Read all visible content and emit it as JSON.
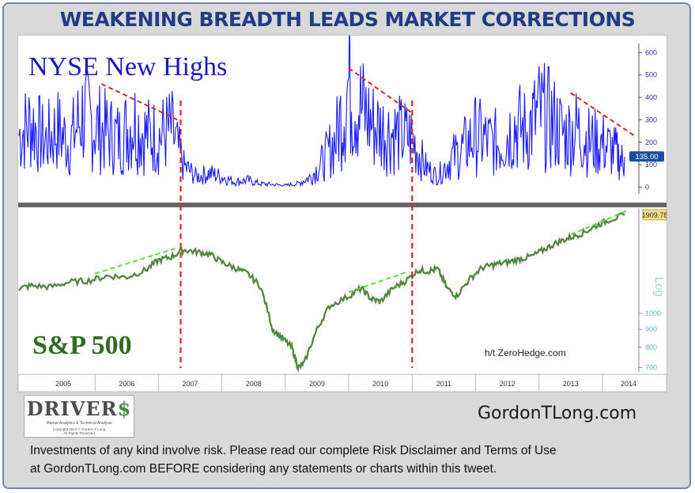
{
  "title": "WEAKENING BREADTH LEADS MARKET CORRECTIONS",
  "site": "GordonTLong.com",
  "disclaimer": {
    "line1": "Investments of any kind involve risk. Please read our complete Risk Disclaimer and Terms of Use",
    "line2": "at GordonTLong.com BEFORE considering any statements or charts within this tweet."
  },
  "brand": {
    "name": "DRIVER",
    "name_symbol": "$",
    "tagline": "Market Analytics & Technical Analysis",
    "copyright_1": "Copyright 2014 © Gordon T Long",
    "copyright_2": "All Rights Reserved"
  },
  "chart_data": [
    {
      "type": "line",
      "title": "NYSE New Highs",
      "y_axis_ticks": [
        "0",
        "100",
        "200",
        "300",
        "400",
        "500",
        "600"
      ],
      "ylim": [
        -30,
        640
      ],
      "last_value_label": "135.00",
      "series": [
        {
          "color": "#1a1aff",
          "x": [
            2004.8,
            2005.0,
            2005.2,
            2005.4,
            2005.6,
            2005.8,
            2006.0,
            2006.2,
            2006.4,
            2006.6,
            2006.8,
            2007.0,
            2007.2,
            2007.4,
            2007.6,
            2007.8,
            2008.0,
            2008.2,
            2008.4,
            2008.6,
            2008.8,
            2009.0,
            2009.2,
            2009.4,
            2009.6,
            2009.8,
            2010.0,
            2010.2,
            2010.4,
            2010.6,
            2010.8,
            2011.0,
            2011.2,
            2011.4,
            2011.6,
            2011.8,
            2012.0,
            2012.2,
            2012.4,
            2012.6,
            2012.8,
            2013.0,
            2013.2,
            2013.4,
            2013.6,
            2013.8,
            2014.0,
            2014.2,
            2014.35
          ],
          "values": [
            300,
            370,
            260,
            330,
            250,
            420,
            350,
            310,
            280,
            380,
            300,
            290,
            330,
            120,
            60,
            80,
            60,
            30,
            40,
            20,
            15,
            10,
            20,
            60,
            150,
            280,
            600,
            450,
            350,
            320,
            300,
            280,
            120,
            60,
            160,
            220,
            300,
            260,
            250,
            360,
            320,
            420,
            380,
            300,
            330,
            260,
            250,
            200,
            135
          ]
        }
      ],
      "trendlines": [
        {
          "color": "#e3231f",
          "x": [
            2006.1,
            2007.3
          ],
          "values": [
            460,
            300
          ]
        },
        {
          "color": "#e3231f",
          "x": [
            2010.0,
            2011.0
          ],
          "values": [
            530,
            330
          ]
        },
        {
          "color": "#e3231f",
          "x": [
            2013.5,
            2014.5
          ],
          "values": [
            420,
            230
          ]
        }
      ]
    },
    {
      "type": "line",
      "title": "S&P 500",
      "scale": "log",
      "y_axis_label": "Log",
      "y_axis_ticks": [
        "700",
        "800",
        "900",
        "1000"
      ],
      "ylim": [
        680,
        2000
      ],
      "last_value_label": "1909.78",
      "x_axis_labels": [
        "2005",
        "2006",
        "2007",
        "2008",
        "2009",
        "2010",
        "2011",
        "2012",
        "2013",
        "2014"
      ],
      "annotation": "h/t ZeroHedge.com",
      "series": [
        {
          "color": "#3a8f3a",
          "x": [
            2004.8,
            2005.0,
            2005.3,
            2005.6,
            2005.9,
            2006.2,
            2006.5,
            2006.8,
            2007.0,
            2007.2,
            2007.4,
            2007.6,
            2007.8,
            2008.0,
            2008.2,
            2008.4,
            2008.6,
            2008.8,
            2008.95,
            2009.1,
            2009.2,
            2009.3,
            2009.5,
            2009.7,
            2010.0,
            2010.2,
            2010.35,
            2010.5,
            2010.7,
            2010.9,
            2011.1,
            2011.25,
            2011.4,
            2011.55,
            2011.7,
            2011.9,
            2012.1,
            2012.3,
            2012.5,
            2012.7,
            2012.9,
            2013.1,
            2013.3,
            2013.5,
            2013.7,
            2013.9,
            2014.1,
            2014.35
          ],
          "values": [
            1180,
            1200,
            1190,
            1230,
            1240,
            1280,
            1270,
            1330,
            1420,
            1450,
            1520,
            1500,
            1480,
            1400,
            1350,
            1300,
            1200,
            900,
            850,
            800,
            700,
            720,
            900,
            1050,
            1120,
            1180,
            1100,
            1080,
            1180,
            1240,
            1330,
            1320,
            1340,
            1180,
            1120,
            1250,
            1350,
            1380,
            1400,
            1430,
            1460,
            1530,
            1600,
            1650,
            1700,
            1780,
            1850,
            1909.78
          ]
        }
      ],
      "trendlines": [
        {
          "color": "#55dd44",
          "x": [
            2006.0,
            2007.3
          ],
          "values": [
            1300,
            1540
          ]
        },
        {
          "color": "#55dd44",
          "x": [
            2010.0,
            2010.9
          ],
          "values": [
            1150,
            1310
          ]
        },
        {
          "color": "#55dd44",
          "x": [
            2013.5,
            2014.4
          ],
          "values": [
            1680,
            1970
          ]
        }
      ],
      "vertical_markers": [
        {
          "color": "#e3231f",
          "x": 2007.35
        },
        {
          "color": "#e3231f",
          "x": 2011.0
        }
      ]
    }
  ]
}
